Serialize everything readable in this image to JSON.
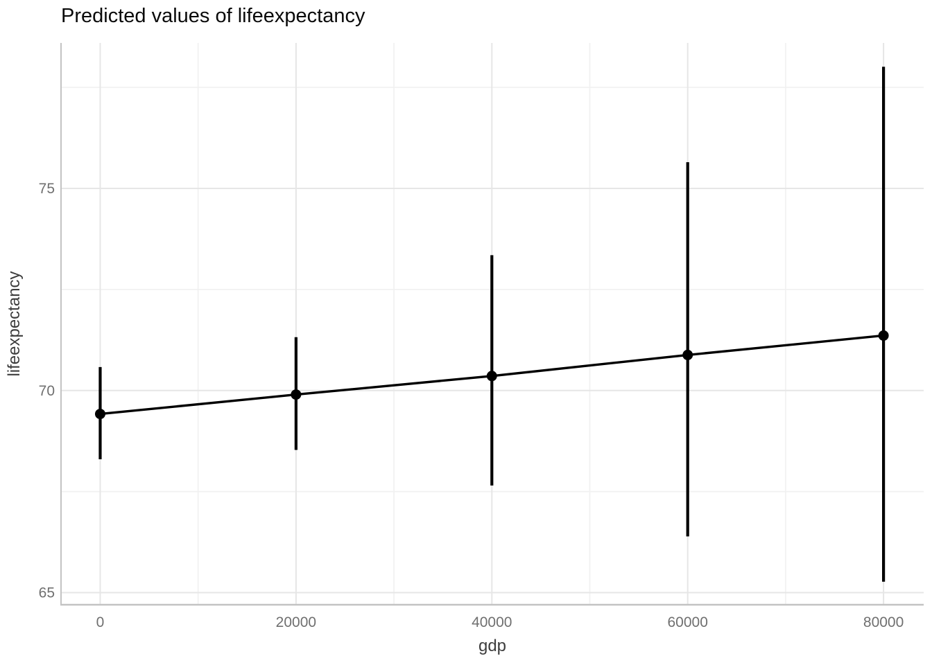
{
  "chart_data": {
    "type": "line",
    "title": "Predicted values of lifeexpectancy",
    "xlabel": "gdp",
    "ylabel": "lifeexpectancy",
    "x": [
      0,
      20000,
      40000,
      60000,
      80000
    ],
    "series": [
      {
        "name": "predicted",
        "values": [
          69.42,
          69.9,
          70.36,
          70.88,
          71.36
        ],
        "ci_low": [
          68.3,
          68.53,
          67.65,
          66.39,
          65.27
        ],
        "ci_high": [
          70.58,
          71.32,
          73.35,
          75.65,
          78.01
        ]
      }
    ],
    "x_ticks": [
      "0",
      "20000",
      "40000",
      "60000",
      "80000"
    ],
    "x_minor": [
      10000,
      30000,
      50000,
      70000
    ],
    "y_ticks": [
      "65",
      "70",
      "75"
    ],
    "y_minor": [
      67.5,
      72.5,
      77.5
    ],
    "xlim": [
      -4000,
      84100
    ],
    "ylim": [
      64.7,
      78.6
    ],
    "grid": true,
    "legend": "none",
    "style": {
      "background": "#ffffff",
      "point_color": "#000000",
      "line_color": "#000000",
      "errorbar_color": "#000000",
      "grid_major_color": "#e6e6e6",
      "grid_minor_color": "#f1f1f1",
      "axis_line_color": "#c3c3c3",
      "tick_label_color": "#6f6f6f",
      "axis_title_color": "#3d3d3d",
      "title_color": "#0a0a0a"
    }
  }
}
